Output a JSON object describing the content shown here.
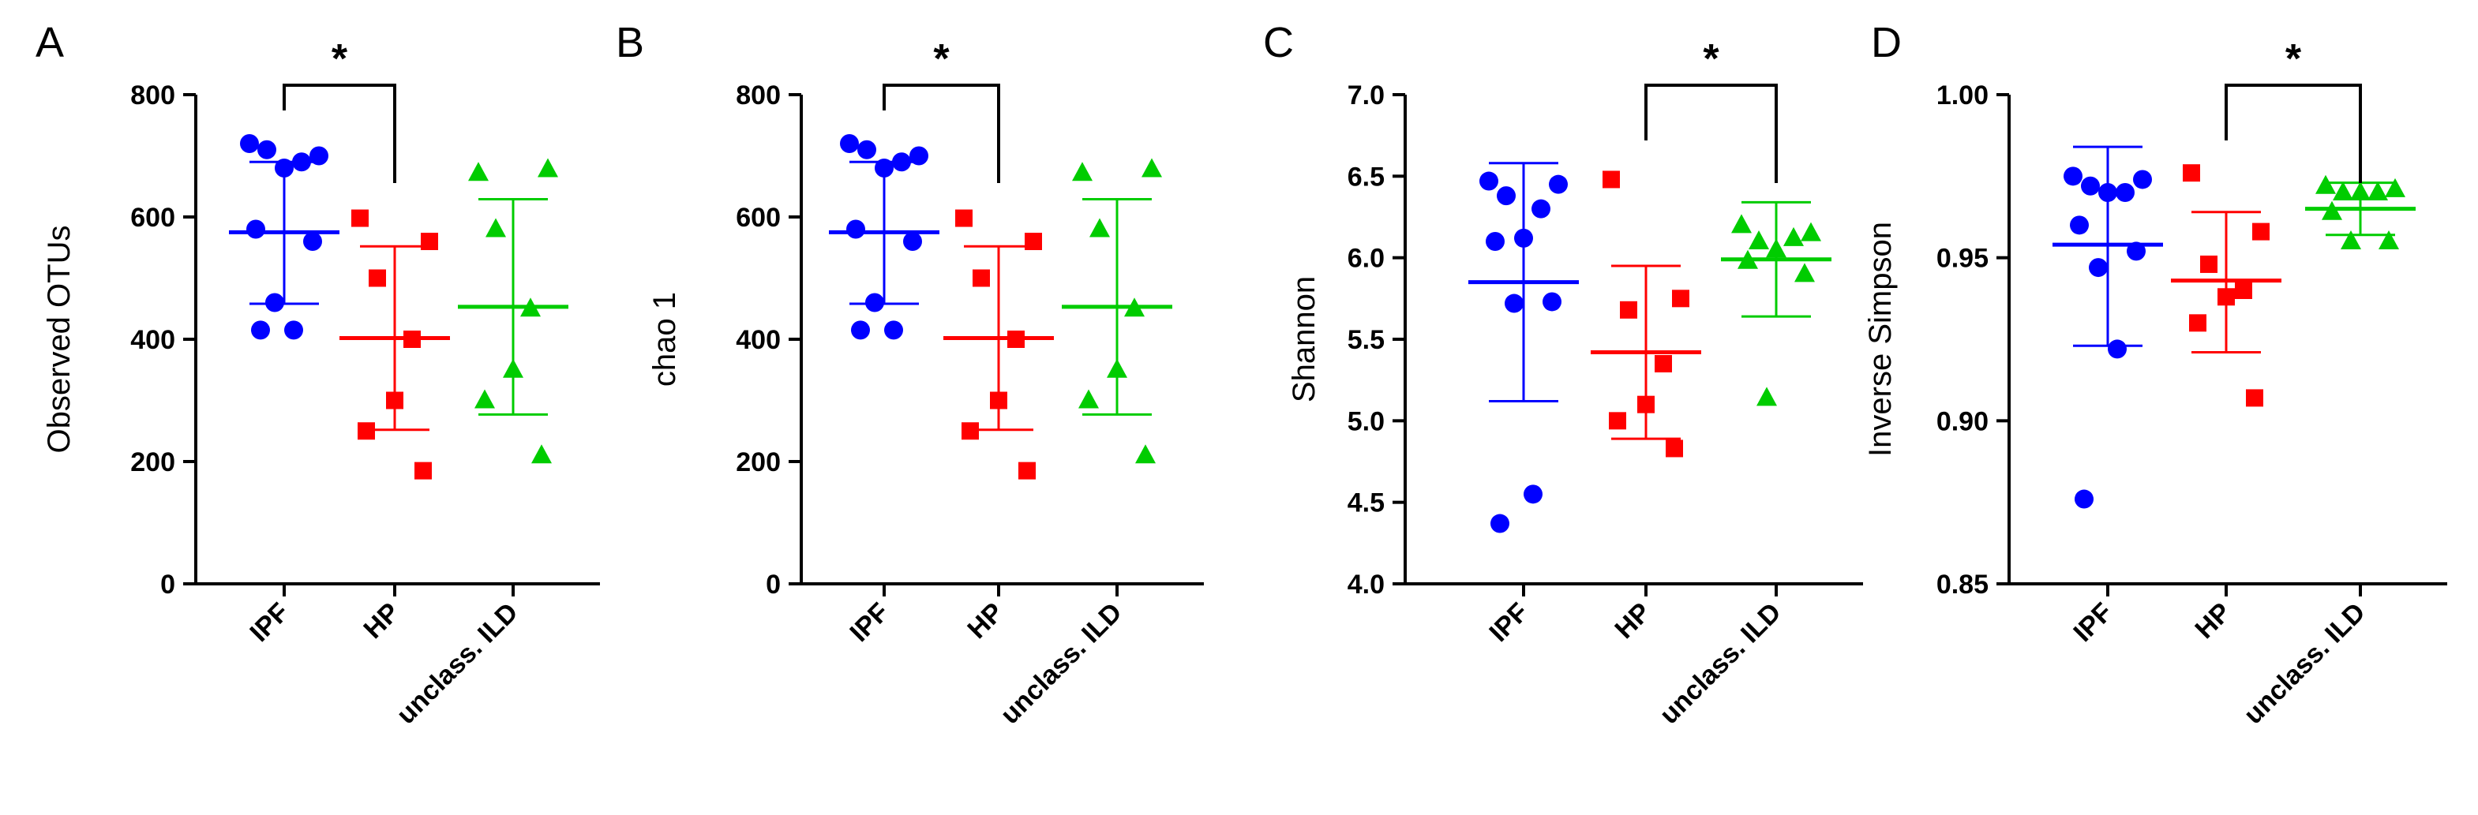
{
  "colors": {
    "IPF": "#0000ff",
    "HP": "#ff0000",
    "unclass. ILD": "#00cc00",
    "axis": "#000000"
  },
  "chart_data": [
    {
      "panel": "A",
      "type": "scatter",
      "ylabel": "Observed OTUs",
      "ylim": [
        0,
        800
      ],
      "yticks": [
        0,
        200,
        400,
        600,
        800
      ],
      "categories": [
        "IPF",
        "HP",
        "unclass. ILD"
      ],
      "series": [
        {
          "name": "IPF",
          "marker": "circle",
          "values": [
            720,
            700,
            710,
            690,
            680,
            580,
            560,
            460,
            415,
            415
          ],
          "mean": 575,
          "sd_low": 458,
          "sd_high": 690
        },
        {
          "name": "HP",
          "marker": "square",
          "values": [
            598,
            560,
            500,
            400,
            300,
            250,
            185
          ],
          "mean": 402,
          "sd_low": 252,
          "sd_high": 552
        },
        {
          "name": "unclass. ILD",
          "marker": "triangle",
          "values": [
            672,
            678,
            580,
            450,
            350,
            300,
            210
          ],
          "mean": 453,
          "sd_low": 277,
          "sd_high": 629
        }
      ],
      "significance": {
        "from": "IPF",
        "to": "HP",
        "label": "*"
      }
    },
    {
      "panel": "B",
      "type": "scatter",
      "ylabel": "chao 1",
      "ylim": [
        0,
        800
      ],
      "yticks": [
        0,
        200,
        400,
        600,
        800
      ],
      "categories": [
        "IPF",
        "HP",
        "unclass. ILD"
      ],
      "series": [
        {
          "name": "IPF",
          "marker": "circle",
          "values": [
            720,
            700,
            710,
            690,
            680,
            580,
            560,
            460,
            415,
            415
          ],
          "mean": 575,
          "sd_low": 458,
          "sd_high": 690
        },
        {
          "name": "HP",
          "marker": "square",
          "values": [
            598,
            560,
            500,
            400,
            300,
            250,
            185
          ],
          "mean": 402,
          "sd_low": 252,
          "sd_high": 552
        },
        {
          "name": "unclass. ILD",
          "marker": "triangle",
          "values": [
            672,
            678,
            580,
            450,
            350,
            300,
            210
          ],
          "mean": 453,
          "sd_low": 277,
          "sd_high": 629
        }
      ],
      "significance": {
        "from": "IPF",
        "to": "HP",
        "label": "*"
      }
    },
    {
      "panel": "C",
      "type": "scatter",
      "ylabel": "Shannon",
      "ylim": [
        4.0,
        7.0
      ],
      "yticks": [
        4.0,
        4.5,
        5.0,
        5.5,
        6.0,
        6.5,
        7.0
      ],
      "tick_format": 1,
      "categories": [
        "IPF",
        "HP",
        "unclass. ILD"
      ],
      "series": [
        {
          "name": "IPF",
          "marker": "circle",
          "values": [
            6.47,
            6.45,
            6.38,
            6.3,
            6.12,
            6.1,
            5.73,
            5.72,
            4.55,
            4.37
          ],
          "mean": 5.85,
          "sd_low": 5.12,
          "sd_high": 6.58
        },
        {
          "name": "HP",
          "marker": "square",
          "values": [
            6.48,
            5.75,
            5.68,
            5.35,
            5.1,
            5.0,
            4.83
          ],
          "mean": 5.42,
          "sd_low": 4.89,
          "sd_high": 5.95
        },
        {
          "name": "unclass. ILD",
          "marker": "triangle",
          "values": [
            6.2,
            6.15,
            6.1,
            6.12,
            6.05,
            5.98,
            5.9,
            5.14
          ],
          "mean": 5.99,
          "sd_low": 5.64,
          "sd_high": 6.34
        }
      ],
      "significance": {
        "from": "HP",
        "to": "unclass. ILD",
        "label": "*"
      }
    },
    {
      "panel": "D",
      "type": "scatter",
      "ylabel": "Inverse Simpson",
      "ylim": [
        0.85,
        1.0
      ],
      "yticks": [
        0.85,
        0.9,
        0.95,
        1.0
      ],
      "tick_format": 2,
      "categories": [
        "IPF",
        "HP",
        "unclass. ILD"
      ],
      "series": [
        {
          "name": "IPF",
          "marker": "circle",
          "values": [
            0.975,
            0.974,
            0.972,
            0.97,
            0.97,
            0.96,
            0.952,
            0.947,
            0.922,
            0.876
          ],
          "mean": 0.954,
          "sd_low": 0.923,
          "sd_high": 0.984
        },
        {
          "name": "HP",
          "marker": "square",
          "values": [
            0.976,
            0.958,
            0.948,
            0.94,
            0.938,
            0.93,
            0.907
          ],
          "mean": 0.943,
          "sd_low": 0.921,
          "sd_high": 0.964
        },
        {
          "name": "unclass. ILD",
          "marker": "triangle",
          "values": [
            0.972,
            0.971,
            0.97,
            0.97,
            0.97,
            0.964,
            0.955,
            0.955
          ],
          "mean": 0.965,
          "sd_low": 0.957,
          "sd_high": 0.973
        }
      ],
      "significance": {
        "from": "HP",
        "to": "unclass. ILD",
        "label": "*"
      }
    }
  ]
}
